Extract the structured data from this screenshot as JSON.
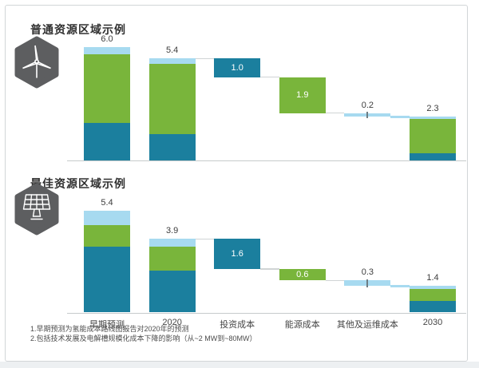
{
  "page": {
    "footnotes": [
      "1.早期预测为氢能成本路线图报告对2020年的预测",
      "2.包括技术发展及电解槽规模化成本下降的影响（从~2 MW到~80MW）"
    ]
  },
  "colors": {
    "teal": "#1b7f9e",
    "green": "#79b53b",
    "sky": "#a7daf0",
    "hexagon": "#5d5e60",
    "connector": "#d0d4d5",
    "axis_line": "#c7cbcc",
    "label_dark": "#3d3d3d",
    "label_light": "#ffffff"
  },
  "chart_data": [
    {
      "type": "waterfall",
      "title": "普通资源区域示例",
      "icon": "wind-turbine-icon",
      "show_category_axis": false,
      "ylim": [
        0,
        6.5
      ],
      "categories": [
        "早期预测",
        "2020",
        "投资成本",
        "能源成本",
        "其他及运维成本",
        "2030"
      ],
      "bars": [
        {
          "category": "早期预测",
          "kind": "stacked",
          "total": 6.0,
          "label": "6.0",
          "segments": [
            {
              "color": "teal",
              "value": 2.0
            },
            {
              "color": "green",
              "value": 3.6
            },
            {
              "color": "sky",
              "value": 0.4
            }
          ]
        },
        {
          "category": "2020",
          "kind": "stacked",
          "total": 5.4,
          "label": "5.4",
          "segments": [
            {
              "color": "teal",
              "value": 1.4
            },
            {
              "color": "green",
              "value": 3.7
            },
            {
              "color": "sky",
              "value": 0.3
            }
          ]
        },
        {
          "category": "投资成本",
          "kind": "float",
          "value": 1.0,
          "label": "1.0",
          "from_level": 5.4,
          "to_level": 4.4,
          "color": "teal",
          "label_placement": "inside"
        },
        {
          "category": "能源成本",
          "kind": "float",
          "value": 1.9,
          "label": "1.9",
          "from_level": 4.4,
          "to_level": 2.5,
          "color": "green",
          "label_placement": "inside"
        },
        {
          "category": "其他及运维成本",
          "kind": "float",
          "value": 0.2,
          "label": "0.2",
          "from_level": 2.5,
          "to_level": 2.3,
          "color": "sky",
          "label_placement": "above",
          "tick": true
        },
        {
          "category": "2030",
          "kind": "stacked",
          "total": 2.3,
          "label": "2.3",
          "segments": [
            {
              "color": "teal",
              "value": 0.4
            },
            {
              "color": "green",
              "value": 1.8
            },
            {
              "color": "sky",
              "value": 0.1
            }
          ]
        }
      ],
      "connectors": [
        {
          "from": 1,
          "to": 2,
          "level": 5.4
        },
        {
          "from": 2,
          "to": 3,
          "level": 4.4
        },
        {
          "from": 3,
          "to": 4,
          "level": 2.5
        },
        {
          "from": 4,
          "to": 5,
          "level": 2.3,
          "color": "sky"
        }
      ]
    },
    {
      "type": "waterfall",
      "title": "最佳资源区域示例",
      "icon": "solar-panel-icon",
      "show_category_axis": true,
      "ylim": [
        0,
        6.5
      ],
      "categories": [
        "早期预测",
        "2020",
        "投资成本",
        "能源成本",
        "其他及运维成本",
        "2030"
      ],
      "bars": [
        {
          "category": "早期预测",
          "kind": "stacked",
          "total": 5.4,
          "label": "5.4",
          "segments": [
            {
              "color": "teal",
              "value": 3.5
            },
            {
              "color": "green",
              "value": 1.1
            },
            {
              "color": "sky",
              "value": 0.8
            }
          ]
        },
        {
          "category": "2020",
          "kind": "stacked",
          "total": 3.9,
          "label": "3.9",
          "segments": [
            {
              "color": "teal",
              "value": 2.2
            },
            {
              "color": "green",
              "value": 1.3
            },
            {
              "color": "sky",
              "value": 0.4
            }
          ]
        },
        {
          "category": "投资成本",
          "kind": "float",
          "value": 1.6,
          "label": "1.6",
          "from_level": 3.9,
          "to_level": 2.3,
          "color": "teal",
          "label_placement": "inside"
        },
        {
          "category": "能源成本",
          "kind": "float",
          "value": 0.6,
          "label": "0.6",
          "from_level": 2.3,
          "to_level": 1.7,
          "color": "green",
          "label_placement": "inside"
        },
        {
          "category": "其他及运维成本",
          "kind": "float",
          "value": 0.3,
          "label": "0.3",
          "from_level": 1.7,
          "to_level": 1.4,
          "color": "sky",
          "label_placement": "above",
          "tick": true
        },
        {
          "category": "2030",
          "kind": "stacked",
          "total": 1.4,
          "label": "1.4",
          "segments": [
            {
              "color": "teal",
              "value": 0.6
            },
            {
              "color": "green",
              "value": 0.65
            },
            {
              "color": "sky",
              "value": 0.15
            }
          ]
        }
      ],
      "connectors": [
        {
          "from": 1,
          "to": 2,
          "level": 3.9
        },
        {
          "from": 2,
          "to": 3,
          "level": 2.3
        },
        {
          "from": 3,
          "to": 4,
          "level": 1.7
        },
        {
          "from": 4,
          "to": 5,
          "level": 1.4,
          "color": "sky"
        }
      ]
    }
  ]
}
